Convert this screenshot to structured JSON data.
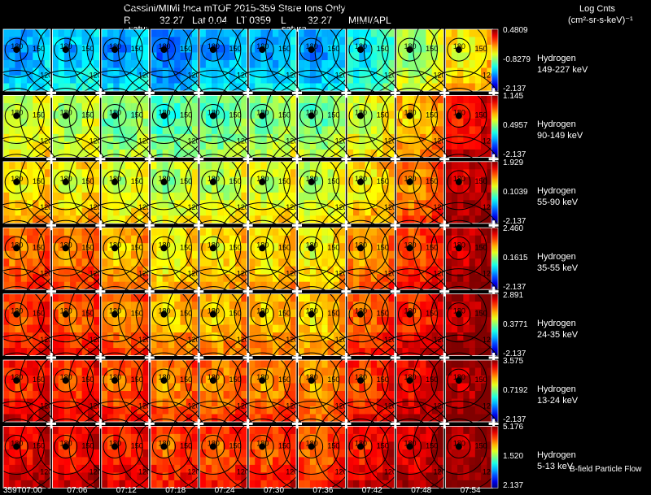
{
  "header": {
    "title": "Cassini/MIMI Inca mTOF  2015-359   Stare   Ions Only",
    "line2_r": "R",
    "line2_r_value": "32.27",
    "line2_lat": "Lat 0.04",
    "line2_lt": "LT 0359",
    "line2_l": "L",
    "line2_l_value": "32.27",
    "line2_inst": "MIMI/APL",
    "saturn_label_left": "satur",
    "saturn_label_right": "saturn",
    "units_line1": "Log Cnts",
    "units_line2": "(cm²-sr-s-keV)⁻¹"
  },
  "footer": {
    "bfield_label": "B-field  Particle Flow"
  },
  "chart_data": {
    "type": "heatmap",
    "columns": 10,
    "time_labels": [
      "359T07:00",
      "07:06",
      "07:12",
      "07:18",
      "07:24",
      "07:30",
      "07:36",
      "07:42",
      "07:48",
      "07:54"
    ],
    "contour_labels": [
      "180",
      "150",
      "120"
    ],
    "rows": [
      {
        "species": "Hydrogen",
        "energy": "149-227 keV",
        "cmax": "0.4809",
        "cmid": "-0.8279",
        "cmin": "-2.137",
        "levels": [
          0.3,
          0.34,
          0.3,
          0.26,
          0.3,
          0.32,
          0.3,
          0.4,
          0.55,
          0.65
        ]
      },
      {
        "species": "Hydrogen",
        "energy": "90-149 keV",
        "cmax": "1.145",
        "cmid": "0.4957",
        "cmin": "-2.137",
        "levels": [
          0.58,
          0.56,
          0.5,
          0.46,
          0.48,
          0.52,
          0.5,
          0.6,
          0.7,
          0.88
        ]
      },
      {
        "species": "Hydrogen",
        "energy": "55-90 keV",
        "cmax": "1.929",
        "cmid": "0.1039",
        "cmin": "-2.137",
        "levels": [
          0.66,
          0.64,
          0.6,
          0.56,
          0.58,
          0.6,
          0.58,
          0.66,
          0.76,
          0.94
        ]
      },
      {
        "species": "Hydrogen",
        "energy": "35-55 keV",
        "cmax": "2.460",
        "cmid": "0.1615",
        "cmin": "-2.137",
        "levels": [
          0.78,
          0.76,
          0.7,
          0.64,
          0.66,
          0.66,
          0.64,
          0.74,
          0.82,
          0.95
        ]
      },
      {
        "species": "Hydrogen",
        "energy": "24-35 keV",
        "cmax": "2.891",
        "cmid": "0.3771",
        "cmin": "-2.137",
        "levels": [
          0.82,
          0.8,
          0.76,
          0.7,
          0.7,
          0.7,
          0.68,
          0.8,
          0.86,
          0.96
        ]
      },
      {
        "species": "Hydrogen",
        "energy": "13-24 keV",
        "cmax": "3.575",
        "cmid": "0.7192",
        "cmin": "-2.137",
        "levels": [
          0.86,
          0.84,
          0.8,
          0.76,
          0.76,
          0.76,
          0.74,
          0.84,
          0.9,
          0.97
        ]
      },
      {
        "species": "Hydrogen",
        "energy": "5-13 keV",
        "cmax": "5.176",
        "cmid": "1.520",
        "cmin": "2.137",
        "levels": [
          0.9,
          0.88,
          0.86,
          0.82,
          0.82,
          0.82,
          0.8,
          0.88,
          0.92,
          0.97
        ]
      }
    ]
  }
}
